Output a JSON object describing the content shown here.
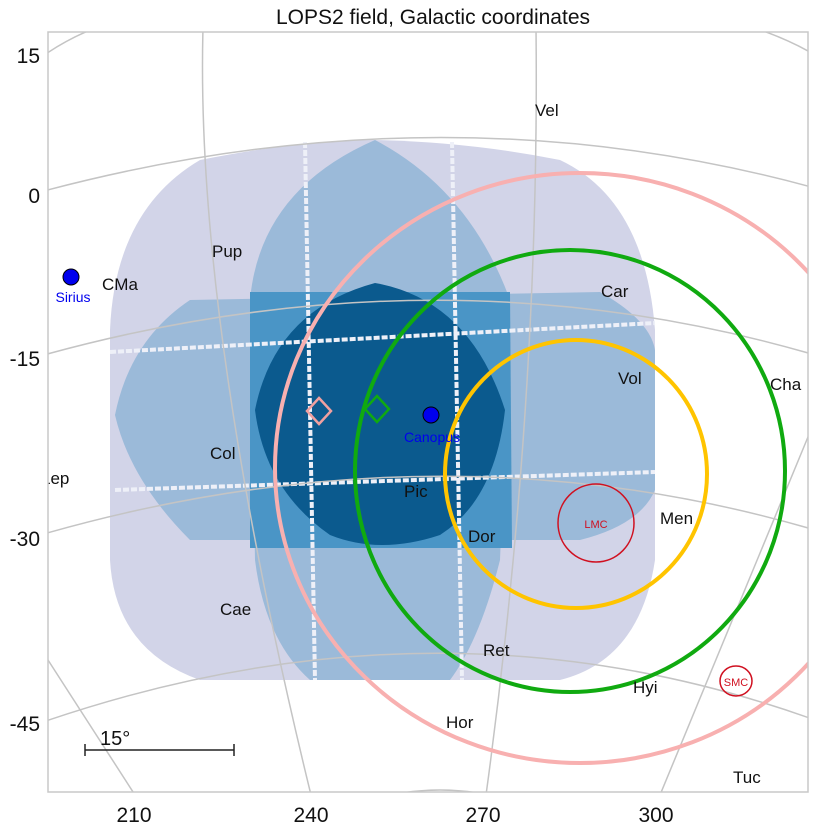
{
  "chart_data": {
    "type": "sky-map",
    "title": "LOPS2 field, Galactic coordinates",
    "projection": "galactic",
    "x_ticks": [
      "210",
      "240",
      "270",
      "300"
    ],
    "y_ticks": [
      "15",
      "0",
      "-15",
      "-30",
      "-45"
    ],
    "grid": true,
    "coverage_colors": {
      "lowest": "#d2d4e8",
      "low": "#9bbad9",
      "mid": "#4a95c6",
      "highest": "#0b5a8e"
    },
    "constellations": [
      "Vel",
      "Pup",
      "CMa",
      "Car",
      "Vol",
      "Cha",
      "Col",
      "Lep",
      "Pic",
      "Dor",
      "Men",
      "Cae",
      "Ret",
      "Hyi",
      "Hor",
      "Tuc"
    ],
    "stars": [
      {
        "name": "Sirius",
        "color": "#0000ee"
      },
      {
        "name": "Canopus",
        "color": "#0000ee"
      }
    ],
    "galaxies": [
      {
        "name": "LMC",
        "color": "#d01020"
      },
      {
        "name": "SMC",
        "color": "#d01020"
      }
    ],
    "circles": [
      {
        "color": "#f8b0b0"
      },
      {
        "color": "#10aa10"
      },
      {
        "color": "#ffc400"
      }
    ],
    "diamond_markers": [
      {
        "color": "#f0a0a0"
      },
      {
        "color": "#10aa10"
      }
    ],
    "scale_bar": {
      "label": "15°"
    }
  }
}
